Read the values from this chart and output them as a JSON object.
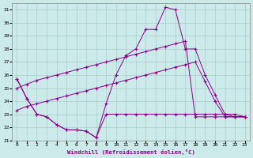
{
  "xlabel": "Windchill (Refroidissement éolien,°C)",
  "background_color": "#cceaea",
  "line_color": "#880088",
  "grid_color": "#aacccc",
  "xlim": [
    -0.5,
    23.5
  ],
  "ylim": [
    21,
    31.5
  ],
  "yticks": [
    21,
    22,
    23,
    24,
    25,
    26,
    27,
    28,
    29,
    30,
    31
  ],
  "xticks": [
    0,
    1,
    2,
    3,
    4,
    5,
    6,
    7,
    8,
    9,
    10,
    11,
    12,
    13,
    14,
    15,
    16,
    17,
    18,
    19,
    20,
    21,
    22,
    23
  ],
  "series": [
    [
      25.7,
      24.2,
      23.0,
      22.8,
      22.2,
      21.8,
      21.8,
      21.7,
      21.2,
      23.0,
      23.0,
      23.0,
      23.0,
      23.0,
      23.0,
      23.0,
      23.0,
      23.0,
      23.0,
      23.0,
      23.0,
      23.0,
      23.0,
      22.8
    ],
    [
      25.7,
      24.2,
      23.0,
      22.8,
      22.2,
      21.8,
      21.8,
      21.7,
      21.2,
      23.8,
      26.0,
      27.5,
      28.0,
      29.5,
      29.5,
      31.2,
      31.0,
      28.0,
      28.0,
      26.0,
      24.5,
      23.0,
      22.8,
      22.8
    ],
    [
      25.0,
      25.3,
      25.6,
      25.8,
      26.0,
      26.2,
      26.4,
      26.6,
      26.8,
      27.0,
      27.2,
      27.4,
      27.6,
      27.8,
      28.0,
      28.2,
      28.4,
      28.6,
      22.8,
      22.8,
      22.8,
      22.8,
      22.8,
      22.8
    ],
    [
      23.3,
      23.6,
      23.8,
      24.0,
      24.2,
      24.4,
      24.6,
      24.8,
      25.0,
      25.2,
      25.4,
      25.6,
      25.8,
      26.0,
      26.2,
      26.4,
      26.6,
      26.8,
      27.0,
      25.5,
      24.0,
      22.8,
      22.8,
      22.8
    ]
  ]
}
